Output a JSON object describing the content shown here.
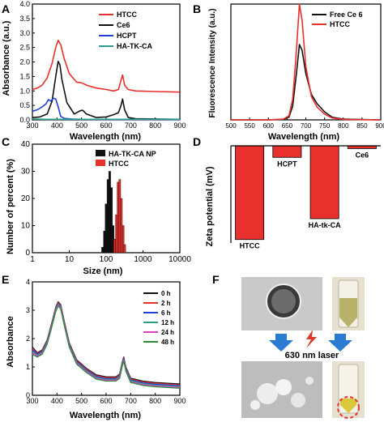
{
  "panels": [
    {
      "letter": "A",
      "xlabel": "Wavelength (nm)",
      "ylabel": "Absorbance (a.u.)"
    },
    {
      "letter": "B",
      "xlabel": "Wavelength (nm)",
      "ylabel": "Fluorescence Intensity (a.u.)"
    },
    {
      "letter": "C",
      "xlabel": "Size (nm)",
      "ylabel": "Number of percent (%)"
    },
    {
      "letter": "D",
      "xlabel": "",
      "ylabel": "Zeta potential (mV)"
    },
    {
      "letter": "E",
      "xlabel": "Wavelength (nm)",
      "ylabel": "Absorbance"
    },
    {
      "letter": "F"
    }
  ],
  "panel_f": {
    "laser_label": "630 nm laser",
    "arrow_color": "#2a7bd4",
    "bolt_color": "#e03a2a"
  },
  "chart_data": [
    {
      "type": "line",
      "panel": "A",
      "xlim": [
        300,
        900
      ],
      "ylim": [
        0,
        4
      ],
      "xticks": [
        300,
        400,
        500,
        600,
        700,
        800,
        900
      ],
      "yticks": [
        0.0,
        0.5,
        1.0,
        1.5,
        2.0,
        2.5,
        3.0,
        3.5,
        4.0
      ],
      "xtick_labels": [
        "300",
        "400",
        "500",
        "600",
        "700",
        "800",
        "900"
      ],
      "ytick_labels": [
        "0.0",
        "0.5",
        "1.0",
        "1.5",
        "2.0",
        "2.5",
        "3.0",
        "3.5",
        "4.0"
      ],
      "xlabel": "Wavelength (nm)",
      "ylabel": "Absorbance (a.u.)",
      "legend_position": "top-right",
      "series": [
        {
          "name": "HTCC",
          "color": "#e8302c",
          "x": [
            300,
            320,
            340,
            360,
            380,
            395,
            405,
            415,
            430,
            450,
            480,
            500,
            520,
            560,
            600,
            630,
            650,
            660,
            667,
            675,
            690,
            720,
            800,
            900
          ],
          "y": [
            1.05,
            1.1,
            1.2,
            1.45,
            1.95,
            2.5,
            2.75,
            2.6,
            2.1,
            1.6,
            1.3,
            1.28,
            1.2,
            1.1,
            1.05,
            1.0,
            1.05,
            1.35,
            1.55,
            1.2,
            1.05,
            1.0,
            0.98,
            0.96
          ]
        },
        {
          "name": "Ce6",
          "color": "#111111",
          "x": [
            300,
            330,
            360,
            380,
            395,
            405,
            412,
            420,
            440,
            470,
            495,
            505,
            520,
            560,
            600,
            630,
            650,
            660,
            667,
            675,
            690,
            720,
            800,
            900
          ],
          "y": [
            0.08,
            0.1,
            0.2,
            0.65,
            1.5,
            2.02,
            1.9,
            1.4,
            0.6,
            0.2,
            0.32,
            0.33,
            0.2,
            0.08,
            0.1,
            0.18,
            0.25,
            0.48,
            0.72,
            0.35,
            0.08,
            0.04,
            0.03,
            0.02
          ]
        },
        {
          "name": "HCPT",
          "color": "#1f3fd8",
          "x": [
            300,
            320,
            340,
            355,
            365,
            375,
            385,
            395,
            405,
            415,
            430,
            460,
            500,
            600,
            700,
            900
          ],
          "y": [
            0.3,
            0.35,
            0.45,
            0.55,
            0.7,
            0.65,
            0.75,
            0.72,
            0.45,
            0.12,
            0.05,
            0.03,
            0.02,
            0.01,
            0.01,
            0.01
          ]
        },
        {
          "name": "HA-TK-CA",
          "color": "#2a9d8f",
          "x": [
            300,
            350,
            400,
            500,
            600,
            700,
            900
          ],
          "y": [
            0.03,
            0.02,
            0.02,
            0.02,
            0.02,
            0.02,
            0.02
          ]
        }
      ]
    },
    {
      "type": "line",
      "panel": "B",
      "xlim": [
        500,
        900
      ],
      "ylim": [
        0,
        500
      ],
      "xticks": [
        500,
        550,
        600,
        650,
        700,
        750,
        800,
        850,
        900
      ],
      "xtick_labels": [
        "500",
        "550",
        "600",
        "650",
        "700",
        "750",
        "800",
        "850",
        "900"
      ],
      "xlabel": "Wavelength (nm)",
      "ylabel": "Fluorescence Intensity (a.u.)",
      "legend_position": "top-right",
      "series": [
        {
          "name": "Free Ce 6",
          "color": "#111111",
          "x": [
            500,
            600,
            640,
            655,
            665,
            675,
            683,
            690,
            700,
            715,
            730,
            750,
            770,
            800,
            900
          ],
          "y": [
            0,
            0,
            2,
            12,
            60,
            200,
            325,
            300,
            200,
            110,
            70,
            35,
            12,
            3,
            0
          ]
        },
        {
          "name": "HTCC",
          "color": "#e8302c",
          "x": [
            500,
            600,
            640,
            655,
            665,
            675,
            683,
            690,
            700,
            715,
            730,
            750,
            770,
            800,
            900
          ],
          "y": [
            0,
            0,
            3,
            18,
            90,
            300,
            500,
            430,
            230,
            100,
            55,
            25,
            8,
            2,
            0
          ]
        }
      ]
    },
    {
      "type": "bar",
      "panel": "C",
      "xscale": "log",
      "xlim": [
        1,
        10000
      ],
      "ylim": [
        0,
        40
      ],
      "xticks": [
        1,
        10,
        100,
        1000,
        10000
      ],
      "xtick_labels": [
        "1",
        "10",
        "100",
        "1000",
        "10000"
      ],
      "yticks": [
        0,
        10,
        20,
        30,
        40
      ],
      "ytick_labels": [
        "0",
        "10",
        "20",
        "30",
        "40"
      ],
      "xlabel": "Size (nm)",
      "ylabel": "Number of percent (%)",
      "legend_position": "top-right",
      "series": [
        {
          "name": "HA-TK-CA NP",
          "color": "#111111",
          "x": [
            80,
            90,
            100,
            112,
            125,
            140,
            155
          ],
          "values": [
            2,
            8,
            18,
            27,
            30,
            24,
            10
          ]
        },
        {
          "name": "HTCC",
          "color": "#e8302c",
          "x": [
            170,
            190,
            210,
            235,
            260,
            290,
            320
          ],
          "values": [
            5,
            14,
            26,
            27,
            20,
            10,
            3
          ]
        }
      ]
    },
    {
      "type": "bar",
      "panel": "D",
      "ylim": [
        -42,
        0
      ],
      "ylabel": "Zeta potential (mV)",
      "categories": [
        "HTCC",
        "HCPT",
        "HA-tk-CA",
        "Ce6"
      ],
      "values": [
        -40.5,
        -5,
        -31.5,
        -1.2
      ],
      "color": "#e8302c"
    },
    {
      "type": "line",
      "panel": "E",
      "xlim": [
        300,
        900
      ],
      "ylim": [
        0,
        4
      ],
      "xticks": [
        300,
        400,
        500,
        600,
        700,
        800,
        900
      ],
      "yticks": [
        0,
        1,
        2,
        3,
        4
      ],
      "xtick_labels": [
        "300",
        "400",
        "500",
        "600",
        "700",
        "800",
        "900"
      ],
      "ytick_labels": [
        "0",
        "1",
        "2",
        "3",
        "4"
      ],
      "xlabel": "Wavelength (nm)",
      "ylabel": "Absorbance",
      "legend_position": "top-right",
      "x": [
        300,
        320,
        340,
        360,
        380,
        395,
        405,
        415,
        430,
        450,
        480,
        500,
        520,
        560,
        600,
        640,
        655,
        665,
        672,
        680,
        700,
        750,
        800,
        900
      ],
      "series": [
        {
          "name": "0 h",
          "color": "#111111",
          "y": [
            1.7,
            1.5,
            1.6,
            1.95,
            2.6,
            3.1,
            3.3,
            3.2,
            2.6,
            1.85,
            1.25,
            1.1,
            0.95,
            0.72,
            0.65,
            0.65,
            0.75,
            1.15,
            1.35,
            1.0,
            0.6,
            0.5,
            0.45,
            0.4
          ]
        },
        {
          "name": "2 h",
          "color": "#e8302c",
          "y": [
            1.65,
            1.47,
            1.57,
            1.92,
            2.57,
            3.07,
            3.27,
            3.17,
            2.57,
            1.82,
            1.22,
            1.07,
            0.92,
            0.69,
            0.62,
            0.62,
            0.72,
            1.12,
            1.32,
            0.97,
            0.57,
            0.47,
            0.42,
            0.37
          ]
        },
        {
          "name": "6 h",
          "color": "#1f3fd8",
          "y": [
            1.6,
            1.44,
            1.54,
            1.89,
            2.54,
            3.04,
            3.24,
            3.14,
            2.54,
            1.79,
            1.19,
            1.04,
            0.89,
            0.66,
            0.59,
            0.59,
            0.69,
            1.09,
            1.29,
            0.94,
            0.54,
            0.44,
            0.39,
            0.34
          ]
        },
        {
          "name": "12 h",
          "color": "#2a9d8f",
          "y": [
            1.55,
            1.41,
            1.51,
            1.86,
            2.51,
            3.01,
            3.21,
            3.11,
            2.51,
            1.76,
            1.16,
            1.01,
            0.86,
            0.63,
            0.56,
            0.56,
            0.66,
            1.06,
            1.26,
            0.91,
            0.51,
            0.41,
            0.36,
            0.31
          ]
        },
        {
          "name": "24 h",
          "color": "#e040c8",
          "y": [
            1.5,
            1.38,
            1.48,
            1.83,
            2.48,
            2.98,
            3.18,
            3.08,
            2.48,
            1.73,
            1.13,
            0.98,
            0.83,
            0.6,
            0.53,
            0.53,
            0.63,
            1.03,
            1.23,
            0.88,
            0.48,
            0.38,
            0.33,
            0.28
          ]
        },
        {
          "name": "48 h",
          "color": "#2e8b3a",
          "y": [
            1.45,
            1.35,
            1.45,
            1.8,
            2.45,
            2.95,
            3.15,
            3.05,
            2.45,
            1.7,
            1.1,
            0.95,
            0.8,
            0.57,
            0.5,
            0.5,
            0.6,
            1.0,
            1.2,
            0.85,
            0.45,
            0.35,
            0.3,
            0.25
          ]
        }
      ]
    }
  ]
}
